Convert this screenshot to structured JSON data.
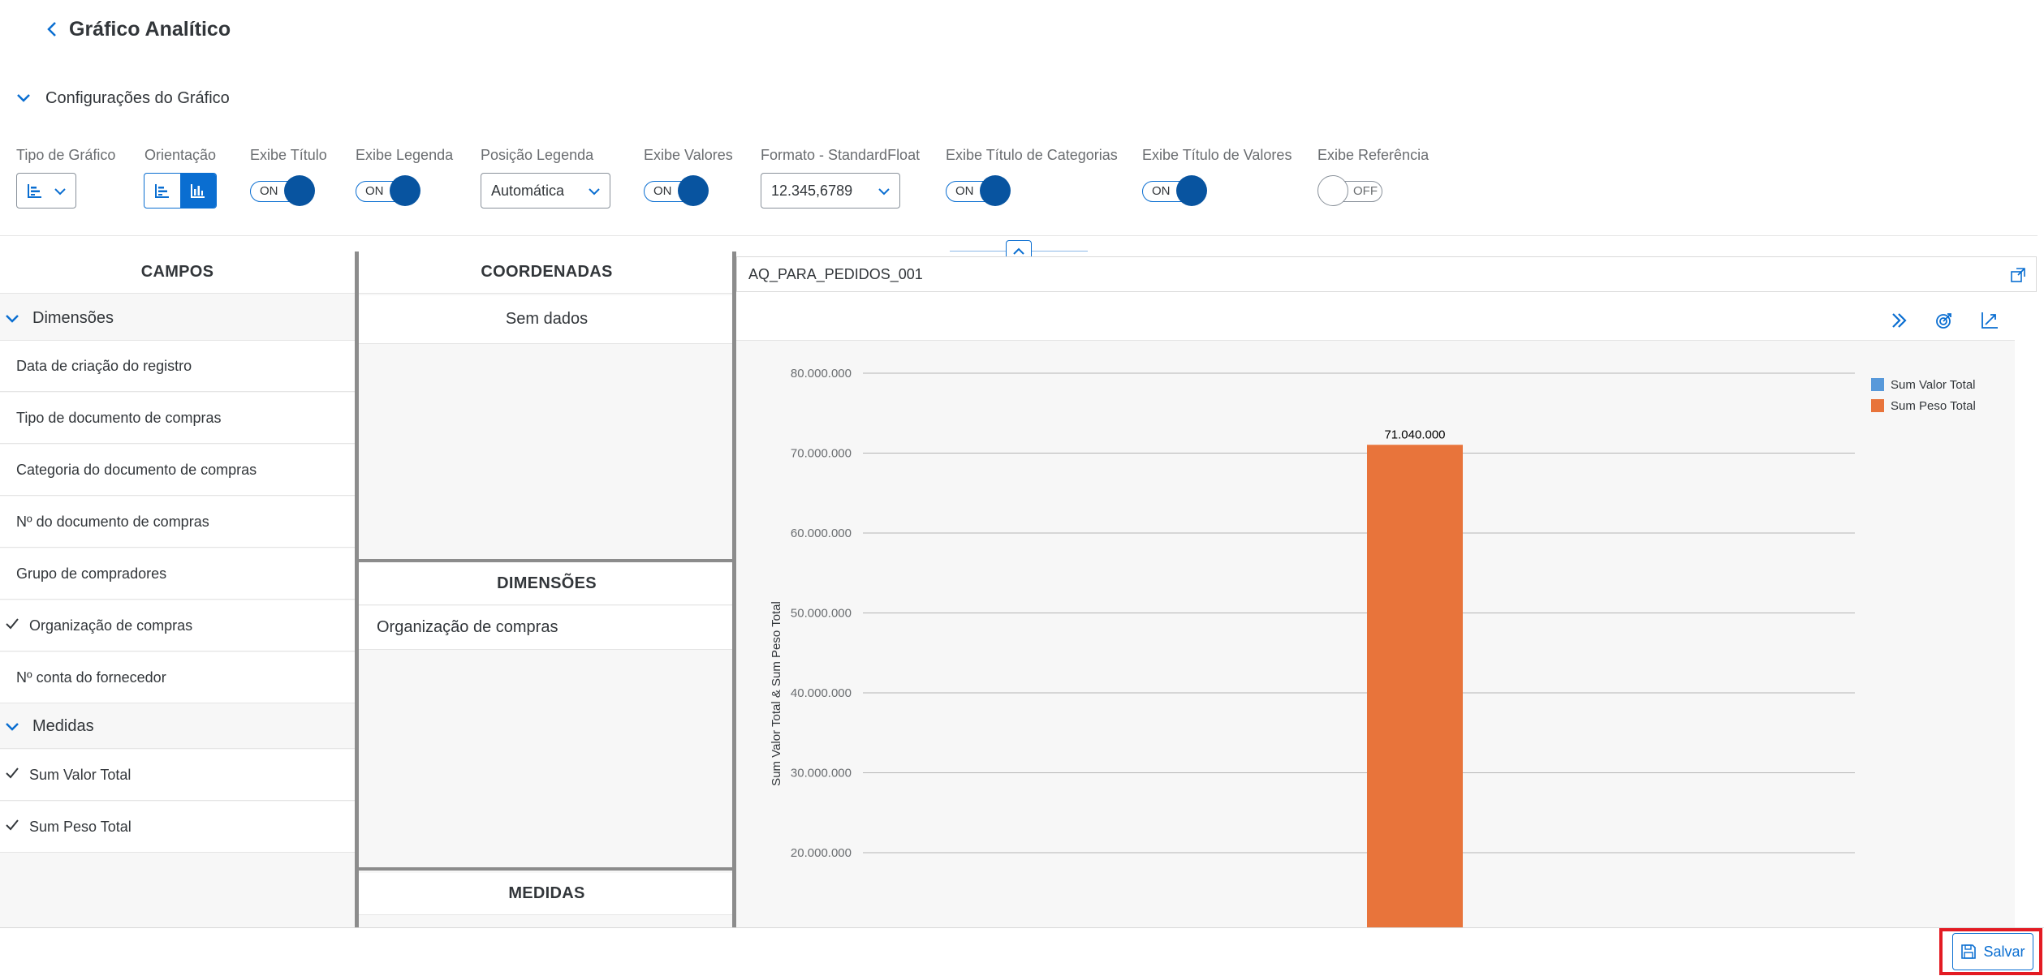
{
  "header": {
    "title": "Gráfico Analítico"
  },
  "config": {
    "section_label": "Configurações do Gráfico",
    "chart_type_label": "Tipo de Gráfico",
    "orientation_label": "Orientação",
    "show_title": {
      "label": "Exibe Título",
      "state": "ON"
    },
    "show_legend": {
      "label": "Exibe Legenda",
      "state": "ON"
    },
    "legend_position": {
      "label": "Posição Legenda",
      "value": "Automática"
    },
    "show_values": {
      "label": "Exibe Valores",
      "state": "ON"
    },
    "format": {
      "label": "Formato - StandardFloat",
      "value": "12.345,6789"
    },
    "show_category_title": {
      "label": "Exibe Título de Categorias",
      "state": "ON"
    },
    "show_value_title": {
      "label": "Exibe Título de Valores",
      "state": "ON"
    },
    "show_reference": {
      "label": "Exibe Referência",
      "state": "OFF"
    }
  },
  "fields": {
    "header": "CAMPOS",
    "dimensions_label": "Dimensões",
    "dimensions": [
      {
        "label": "Data de criação do registro",
        "checked": false
      },
      {
        "label": "Tipo de documento de compras",
        "checked": false
      },
      {
        "label": "Categoria do documento de compras",
        "checked": false
      },
      {
        "label": "Nº do documento de compras",
        "checked": false
      },
      {
        "label": "Grupo de compradores",
        "checked": false
      },
      {
        "label": "Organização de compras",
        "checked": true
      },
      {
        "label": "Nº conta do fornecedor",
        "checked": false
      }
    ],
    "measures_label": "Medidas",
    "measures": [
      {
        "label": "Sum Valor Total",
        "checked": true
      },
      {
        "label": "Sum Peso Total",
        "checked": true
      }
    ]
  },
  "coords": {
    "header": "COORDENADAS",
    "empty": "Sem dados",
    "dimensions_header": "DIMENSÕES",
    "dimension_item": "Organização de compras",
    "measures_header": "MEDIDAS"
  },
  "card": {
    "title": "AQ_PARA_PEDIDOS_001"
  },
  "chart_data": {
    "type": "bar",
    "categories": [
      ""
    ],
    "series": [
      {
        "name": "Sum Valor Total",
        "values": [
          0
        ],
        "color": "#5899da"
      },
      {
        "name": "Sum Peso Total",
        "values": [
          71040000
        ],
        "color": "#e8743b"
      }
    ],
    "data_labels": [
      "71.040.000"
    ],
    "ylabel": "Sum Valor Total & Sum Peso Total",
    "yticks": [
      "20.000.000",
      "30.000.000",
      "40.000.000",
      "50.000.000",
      "60.000.000",
      "70.000.000",
      "80.000.000"
    ],
    "ytick_values": [
      20000000,
      30000000,
      40000000,
      50000000,
      60000000,
      70000000,
      80000000
    ],
    "ylim": [
      0,
      80000000
    ],
    "grid": true,
    "legend_position": "top-right"
  },
  "footer": {
    "save_label": "Salvar"
  },
  "colors": {
    "accent": "#0a6ed1",
    "toggle_knob": "#0854a0",
    "highlight": "#e31b23"
  }
}
